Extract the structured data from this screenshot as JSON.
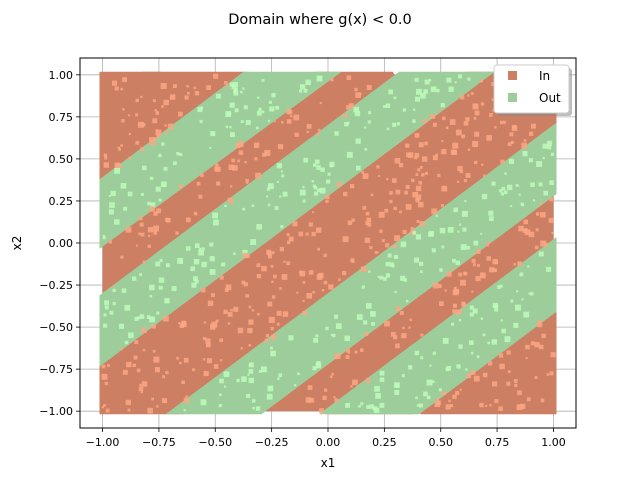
{
  "chart_data": {
    "type": "scatter",
    "title": "Domain where g(x) < 0.0",
    "xlabel": "x1",
    "ylabel": "x2",
    "xlim": [
      -1.1,
      1.1
    ],
    "ylim": [
      -1.1,
      1.1
    ],
    "xticks": [
      -1.0,
      -0.75,
      -0.5,
      -0.25,
      0.0,
      0.25,
      0.5,
      0.75,
      1.0
    ],
    "yticks": [
      -1.0,
      -0.75,
      -0.5,
      -0.25,
      0.0,
      0.25,
      0.5,
      0.75,
      1.0
    ],
    "xtick_labels": [
      "−1.00",
      "−0.75",
      "−0.50",
      "−0.25",
      "0.00",
      "0.25",
      "0.50",
      "0.75",
      "1.00"
    ],
    "ytick_labels": [
      "−1.00",
      "−0.75",
      "−0.50",
      "−0.25",
      "0.00",
      "0.25",
      "0.50",
      "0.75",
      "1.00"
    ],
    "grid": true,
    "legend_placement": "upper-right",
    "series": [
      {
        "name": "In",
        "color": "#cd7f63",
        "highlight_color": "#fca784",
        "regions": [
          {
            "shape": "corner",
            "vertices": [
              [
                -0.02,
                1.0
              ],
              [
                1.0,
                -0.03
              ],
              [
                1.0,
                -0.7
              ],
              [
                0.28,
                1.0
              ]
            ]
          },
          {
            "shape": "band",
            "vertices": [
              [
                -1.0,
                0.82
              ],
              [
                -0.82,
                1.0
              ],
              [
                -0.4,
                1.0
              ],
              [
                -1.0,
                0.4
              ]
            ]
          },
          {
            "shape": "band",
            "vertices": [
              [
                -1.0,
                0.01
              ],
              [
                0.0,
                -1.0
              ],
              [
                0.34,
                -1.0
              ],
              [
                -1.0,
                0.34
              ]
            ]
          },
          {
            "shape": "band",
            "vertices": [
              [
                -1.0,
                -0.68
              ],
              [
                -0.68,
                -1.0
              ],
              [
                -1.0,
                -1.0
              ]
            ]
          },
          {
            "shape": "band",
            "vertices": [
              [
                0.41,
                -1.0
              ],
              [
                1.0,
                -1.0
              ],
              [
                1.0,
                -0.58
              ]
            ]
          },
          {
            "shape": "band",
            "vertices": [
              [
                -1.0,
                0.78
              ],
              [
                -0.78,
                1.0
              ],
              [
                -1.0,
                1.0
              ]
            ]
          },
          {
            "shape": "band",
            "vertices": [
              [
                0.65,
                1.0
              ],
              [
                1.0,
                0.65
              ],
              [
                1.0,
                1.0
              ]
            ]
          }
        ]
      },
      {
        "name": "Out",
        "color": "#9dcd9a",
        "highlight_color": "#bdfcbb",
        "regions": [
          {
            "shape": "band",
            "vertices": [
              [
                -1.0,
                0.37
              ],
              [
                -0.37,
                1.0
              ],
              [
                0.02,
                1.0
              ],
              [
                -1.0,
                0.0
              ]
            ]
          },
          {
            "shape": "band",
            "vertices": [
              [
                -1.0,
                -0.32
              ],
              [
                0.32,
                1.0
              ],
              [
                0.7,
                1.0
              ],
              [
                -1.0,
                -0.7
              ]
            ]
          },
          {
            "shape": "band",
            "vertices": [
              [
                -0.68,
                -1.0
              ],
              [
                1.0,
                0.68
              ],
              [
                1.0,
                0.3
              ],
              [
                -0.3,
                -1.0
              ]
            ]
          },
          {
            "shape": "band",
            "vertices": [
              [
                0.0,
                -1.0
              ],
              [
                1.0,
                0.0
              ],
              [
                1.0,
                -0.4
              ],
              [
                0.4,
                -1.0
              ]
            ]
          }
        ]
      }
    ]
  }
}
